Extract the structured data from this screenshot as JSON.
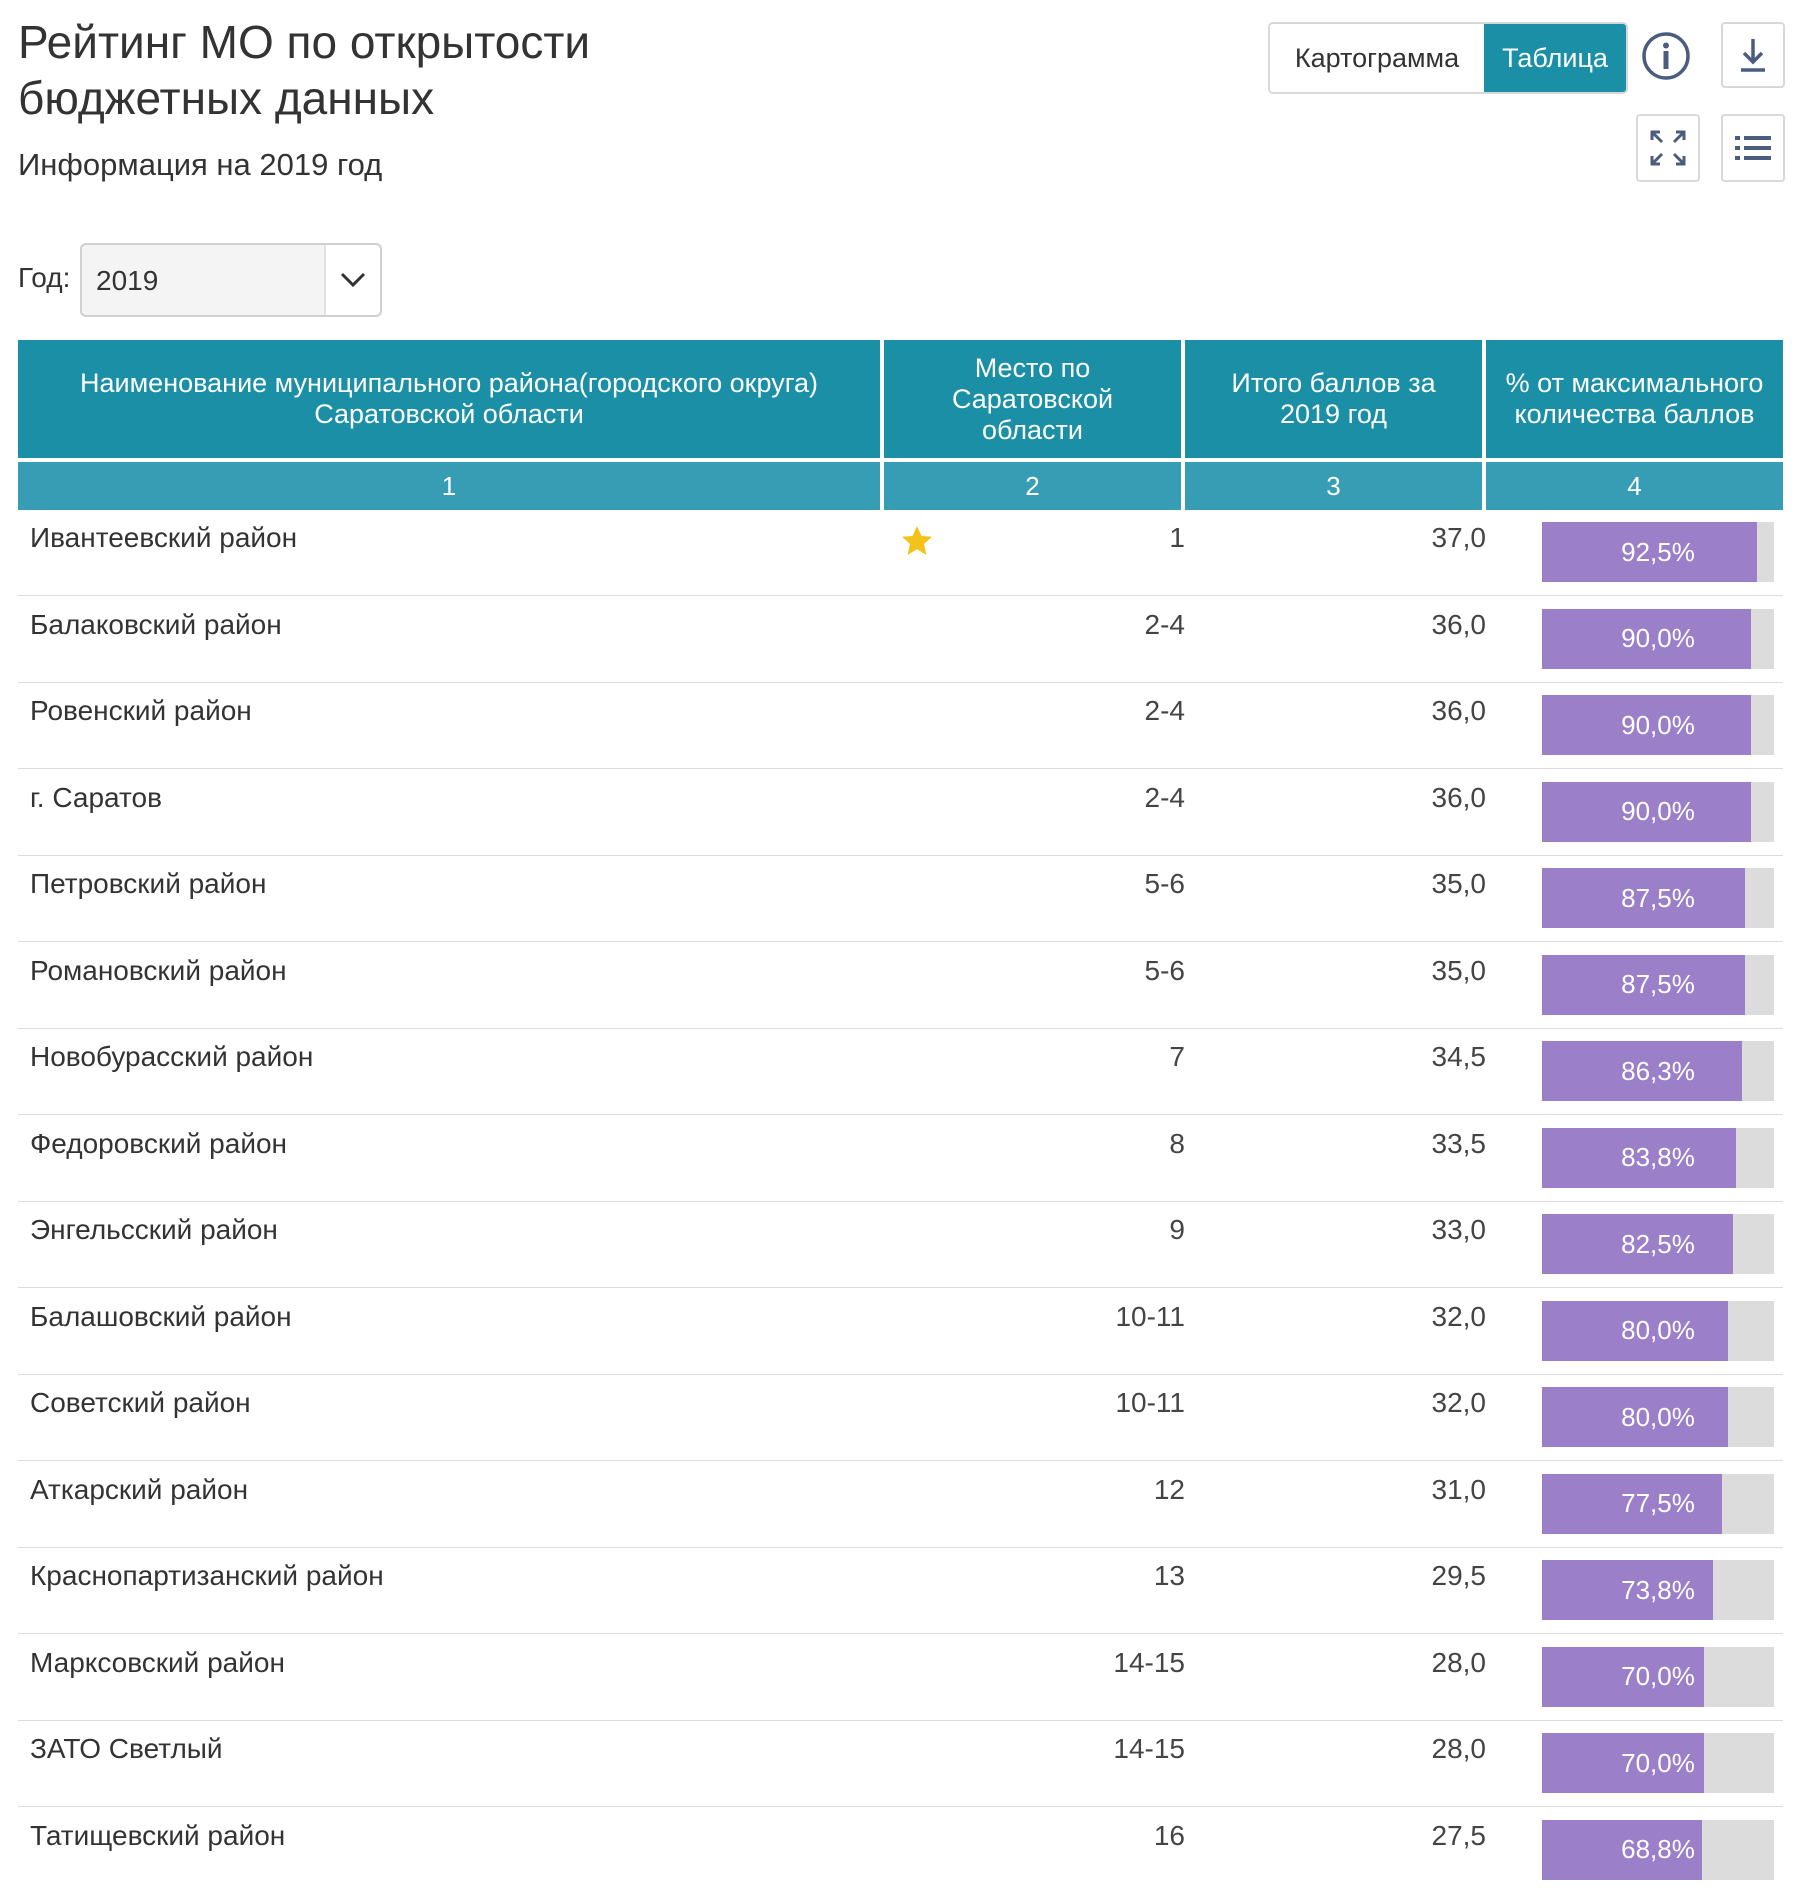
{
  "header": {
    "title_line1": "Рейтинг МО по открытости",
    "title_line2": "бюджетных данных",
    "subtitle": "Информация на 2019 год"
  },
  "toolbar": {
    "map_label": "Картограмма",
    "table_label": "Таблица",
    "info_icon": "info-icon",
    "download_icon": "download-icon",
    "fullscreen_icon": "fullscreen-icon",
    "menu_icon": "menu-icon"
  },
  "filter": {
    "year_label": "Год:",
    "year_value": "2019"
  },
  "table": {
    "columns": [
      "Наименование муниципального района(городского округа) Саратовской области",
      "Место по Саратовской области",
      "Итого баллов за 2019 год",
      "% от максимального количества баллов"
    ],
    "column_numbers": [
      "1",
      "2",
      "3",
      "4"
    ],
    "rows": [
      {
        "name": "Ивантеевский район",
        "rank": "1",
        "score": "37,0",
        "percent": "92,5%",
        "percent_value": 92.5,
        "star": true
      },
      {
        "name": "Балаковский район",
        "rank": "2-4",
        "score": "36,0",
        "percent": "90,0%",
        "percent_value": 90.0
      },
      {
        "name": "Ровенский район",
        "rank": "2-4",
        "score": "36,0",
        "percent": "90,0%",
        "percent_value": 90.0
      },
      {
        "name": "г. Саратов",
        "rank": "2-4",
        "score": "36,0",
        "percent": "90,0%",
        "percent_value": 90.0
      },
      {
        "name": "Петровский район",
        "rank": "5-6",
        "score": "35,0",
        "percent": "87,5%",
        "percent_value": 87.5
      },
      {
        "name": "Романовский район",
        "rank": "5-6",
        "score": "35,0",
        "percent": "87,5%",
        "percent_value": 87.5
      },
      {
        "name": "Новобурасский район",
        "rank": "7",
        "score": "34,5",
        "percent": "86,3%",
        "percent_value": 86.3
      },
      {
        "name": "Федоровский район",
        "rank": "8",
        "score": "33,5",
        "percent": "83,8%",
        "percent_value": 83.8
      },
      {
        "name": "Энгельсский район",
        "rank": "9",
        "score": "33,0",
        "percent": "82,5%",
        "percent_value": 82.5
      },
      {
        "name": "Балашовский район",
        "rank": "10-11",
        "score": "32,0",
        "percent": "80,0%",
        "percent_value": 80.0
      },
      {
        "name": "Советский район",
        "rank": "10-11",
        "score": "32,0",
        "percent": "80,0%",
        "percent_value": 80.0
      },
      {
        "name": "Аткарский район",
        "rank": "12",
        "score": "31,0",
        "percent": "77,5%",
        "percent_value": 77.5
      },
      {
        "name": "Краснопартизанский район",
        "rank": "13",
        "score": "29,5",
        "percent": "73,8%",
        "percent_value": 73.8
      },
      {
        "name": "Марксовский район",
        "rank": "14-15",
        "score": "28,0",
        "percent": "70,0%",
        "percent_value": 70.0
      },
      {
        "name": "ЗАТО Светлый",
        "rank": "14-15",
        "score": "28,0",
        "percent": "70,0%",
        "percent_value": 70.0
      },
      {
        "name": "Татищевский район",
        "rank": "16",
        "score": "27,5",
        "percent": "68,8%",
        "percent_value": 68.8
      }
    ]
  },
  "colors": {
    "header_bg": "#1a8fa6",
    "subheader_bg": "#379db5",
    "bar_fill": "#9b7fc8",
    "bar_track": "#dcdcdc",
    "star": "#f5c21b"
  }
}
